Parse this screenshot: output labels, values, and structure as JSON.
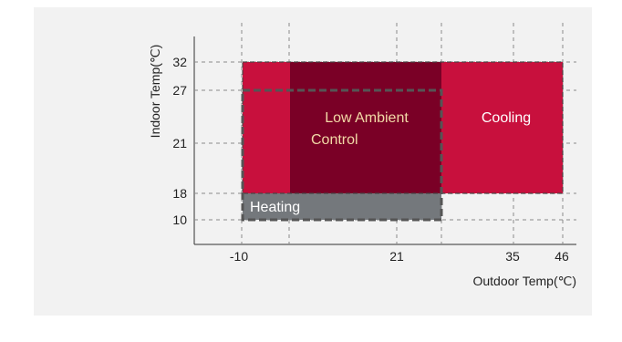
{
  "chart": {
    "x_axis_label": "Outdoor Temp(℃)",
    "y_axis_label": "Indoor Temp(℃)",
    "x_ticks": [
      "-10",
      "21",
      "35",
      "46"
    ],
    "y_ticks": [
      "32",
      "27",
      "21",
      "18",
      "10"
    ]
  },
  "regions": {
    "cooling": "Cooling",
    "low_ambient_line1": "Low Ambient",
    "low_ambient_line2": "Control",
    "heating": "Heating"
  },
  "colors": {
    "panel_background": "#f2f2f2",
    "cooling_fill": "#c8103d",
    "low_ambient_fill": "#7a0026",
    "heating_fill": "#74787c",
    "dashed_outline": "#555555"
  }
}
